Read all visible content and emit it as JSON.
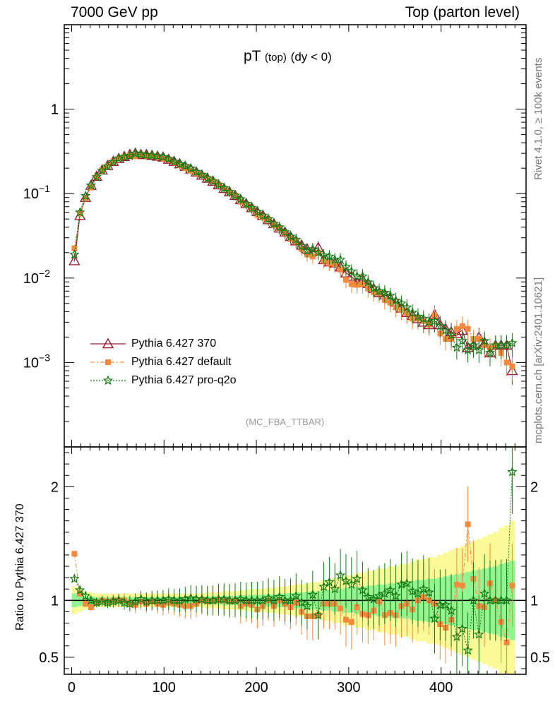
{
  "header": {
    "left": "7000 GeV pp",
    "right": "Top (parton level)"
  },
  "side_labels": {
    "rivet": "Rivet 4.1.0, ≥ 100k events",
    "mcplots": "mcplots.cern.ch [arXiv:2401.10621]"
  },
  "plot_title": {
    "main": "pT",
    "sub": "(top)",
    "cond": "(dy < 0)"
  },
  "analysis_tag": "(MC_FBA_TTBAR)",
  "ratio_ylabel": "Ratio to Pythia 6.427 370",
  "legend": [
    {
      "label": "Pythia 6.427 370",
      "color": "#9b1b30",
      "marker": "triangle"
    },
    {
      "label": "Pythia 6.427 default",
      "color": "#f58a3c",
      "marker": "square"
    },
    {
      "label": "Pythia 6.427 pro-q2o",
      "color": "#127a12",
      "marker": "star"
    }
  ],
  "colors": {
    "band_green": "#90f590",
    "band_yellow": "#fafa96"
  },
  "chart_data": [
    {
      "type": "line",
      "title": "pT (top) (dy < 0)",
      "xlabel": "",
      "ylabel": "",
      "xlim": [
        -8,
        492
      ],
      "ylim": [
        0.0001,
        10
      ],
      "yscale": "log",
      "yticks": [
        0.001,
        0.01,
        0.1,
        1
      ],
      "ytick_labels": [
        "10^-3",
        "10^-2",
        "10^-1",
        "1"
      ],
      "x": [
        3,
        9,
        15,
        21,
        27,
        33,
        39,
        45,
        51,
        57,
        63,
        69,
        75,
        81,
        87,
        93,
        99,
        105,
        111,
        117,
        123,
        129,
        135,
        141,
        147,
        153,
        159,
        165,
        171,
        177,
        183,
        189,
        195,
        201,
        207,
        213,
        219,
        225,
        231,
        237,
        243,
        249,
        255,
        261,
        267,
        273,
        279,
        285,
        291,
        297,
        303,
        309,
        315,
        321,
        327,
        333,
        339,
        345,
        351,
        357,
        363,
        369,
        375,
        381,
        387,
        393,
        399,
        405,
        411,
        417,
        423,
        429,
        435,
        441,
        447,
        453,
        459,
        465,
        471,
        477
      ],
      "series": [
        {
          "name": "Pythia 6.427 370",
          "values": [
            0.016,
            0.055,
            0.09,
            0.125,
            0.16,
            0.19,
            0.215,
            0.24,
            0.26,
            0.275,
            0.29,
            0.3,
            0.29,
            0.29,
            0.283,
            0.277,
            0.27,
            0.255,
            0.24,
            0.225,
            0.21,
            0.195,
            0.18,
            0.165,
            0.152,
            0.14,
            0.127,
            0.115,
            0.105,
            0.095,
            0.085,
            0.076,
            0.068,
            0.061,
            0.055,
            0.049,
            0.044,
            0.039,
            0.035,
            0.031,
            0.0275,
            0.0245,
            0.022,
            0.021,
            0.023,
            0.0165,
            0.0155,
            0.015,
            0.0135,
            0.0115,
            0.0105,
            0.0088,
            0.0096,
            0.0086,
            0.0075,
            0.0067,
            0.0063,
            0.0057,
            0.0052,
            0.0044,
            0.0039,
            0.0036,
            0.0033,
            0.003,
            0.0028,
            0.0037,
            0.0028,
            0.0025,
            0.0023,
            0.0022,
            0.0024,
            0.0015,
            0.0016,
            0.002,
            0.0017,
            0.0013,
            0.0016,
            0.0016,
            0.0016,
            0.0008
          ]
        },
        {
          "name": "Pythia 6.427 default",
          "values": [
            0.0225,
            0.058,
            0.087,
            0.118,
            0.157,
            0.19,
            0.213,
            0.24,
            0.26,
            0.275,
            0.283,
            0.277,
            0.29,
            0.28,
            0.28,
            0.269,
            0.26,
            0.25,
            0.232,
            0.215,
            0.2,
            0.186,
            0.175,
            0.166,
            0.15,
            0.141,
            0.128,
            0.115,
            0.104,
            0.095,
            0.08,
            0.074,
            0.066,
            0.056,
            0.052,
            0.049,
            0.042,
            0.039,
            0.034,
            0.029,
            0.027,
            0.022,
            0.019,
            0.018,
            0.02,
            0.016,
            0.015,
            0.0145,
            0.0126,
            0.0095,
            0.0085,
            0.0083,
            0.0085,
            0.0075,
            0.0068,
            0.0066,
            0.0055,
            0.0051,
            0.0045,
            0.0042,
            0.0038,
            0.0033,
            0.0033,
            0.0031,
            0.0028,
            0.0036,
            0.0022,
            0.0019,
            0.0019,
            0.0025,
            0.0027,
            0.0025,
            0.0019,
            0.0019,
            0.0016,
            0.0015,
            0.0016,
            0.0013,
            0.001,
            0.0009
          ]
        },
        {
          "name": "Pythia 6.427 pro-q2o",
          "values": [
            0.019,
            0.06,
            0.094,
            0.125,
            0.157,
            0.188,
            0.21,
            0.237,
            0.261,
            0.27,
            0.28,
            0.298,
            0.292,
            0.286,
            0.283,
            0.278,
            0.271,
            0.258,
            0.239,
            0.224,
            0.213,
            0.199,
            0.181,
            0.167,
            0.152,
            0.14,
            0.128,
            0.116,
            0.105,
            0.095,
            0.086,
            0.076,
            0.068,
            0.061,
            0.055,
            0.05,
            0.044,
            0.04,
            0.035,
            0.031,
            0.0285,
            0.024,
            0.021,
            0.022,
            0.02,
            0.0185,
            0.018,
            0.0165,
            0.0165,
            0.0135,
            0.012,
            0.0105,
            0.0105,
            0.0089,
            0.0076,
            0.007,
            0.0067,
            0.0062,
            0.0054,
            0.005,
            0.0045,
            0.0039,
            0.0035,
            0.0033,
            0.003,
            0.0031,
            0.0027,
            0.0024,
            0.0021,
            0.0015,
            0.0018,
            0.0014,
            0.0016,
            0.0014,
            0.0018,
            0.0013,
            0.0016,
            0.0016,
            0.0016,
            0.0017
          ]
        }
      ]
    },
    {
      "type": "line",
      "title": "",
      "xlabel": "",
      "ylabel": "Ratio to Pythia 6.427 370",
      "xlim": [
        -8,
        492
      ],
      "ylim": [
        0.35,
        2.35
      ],
      "xticks": [
        0,
        100,
        200,
        300,
        400
      ],
      "xtick_labels": [
        "0",
        "100",
        "200",
        "300",
        "400"
      ],
      "yticks": [
        0.5,
        1,
        2
      ],
      "ytick_labels": [
        "0.5",
        "1",
        "2"
      ],
      "x": [
        3,
        9,
        15,
        21,
        27,
        33,
        39,
        45,
        51,
        57,
        63,
        69,
        75,
        81,
        87,
        93,
        99,
        105,
        111,
        117,
        123,
        129,
        135,
        141,
        147,
        153,
        159,
        165,
        171,
        177,
        183,
        189,
        195,
        201,
        207,
        213,
        219,
        225,
        231,
        237,
        243,
        249,
        255,
        261,
        267,
        273,
        279,
        285,
        291,
        297,
        303,
        309,
        315,
        321,
        327,
        333,
        339,
        345,
        351,
        357,
        363,
        369,
        375,
        381,
        387,
        393,
        399,
        405,
        411,
        417,
        423,
        429,
        435,
        441,
        447,
        453,
        459,
        465,
        471,
        477
      ],
      "band_half_width_1sigma": [
        0.06,
        0.05,
        0.04,
        0.035,
        0.03,
        0.03,
        0.03,
        0.03,
        0.03,
        0.03,
        0.03,
        0.03,
        0.03,
        0.03,
        0.03,
        0.03,
        0.03,
        0.03,
        0.03,
        0.03,
        0.03,
        0.03,
        0.03,
        0.03,
        0.035,
        0.035,
        0.035,
        0.04,
        0.04,
        0.04,
        0.045,
        0.045,
        0.05,
        0.05,
        0.05,
        0.055,
        0.055,
        0.06,
        0.06,
        0.065,
        0.07,
        0.07,
        0.075,
        0.08,
        0.08,
        0.09,
        0.09,
        0.1,
        0.1,
        0.11,
        0.11,
        0.12,
        0.12,
        0.13,
        0.13,
        0.14,
        0.14,
        0.15,
        0.15,
        0.16,
        0.16,
        0.17,
        0.18,
        0.18,
        0.19,
        0.19,
        0.2,
        0.21,
        0.22,
        0.23,
        0.24,
        0.25,
        0.26,
        0.27,
        0.28,
        0.29,
        0.3,
        0.32,
        0.33,
        0.35
      ],
      "band_half_width_2sigma": [
        0.12,
        0.1,
        0.08,
        0.07,
        0.06,
        0.06,
        0.06,
        0.06,
        0.06,
        0.06,
        0.06,
        0.06,
        0.06,
        0.06,
        0.06,
        0.06,
        0.06,
        0.06,
        0.06,
        0.06,
        0.06,
        0.06,
        0.06,
        0.06,
        0.07,
        0.07,
        0.07,
        0.08,
        0.08,
        0.08,
        0.09,
        0.09,
        0.1,
        0.1,
        0.1,
        0.11,
        0.11,
        0.12,
        0.12,
        0.13,
        0.14,
        0.14,
        0.15,
        0.16,
        0.16,
        0.18,
        0.18,
        0.2,
        0.2,
        0.22,
        0.22,
        0.24,
        0.24,
        0.26,
        0.26,
        0.28,
        0.28,
        0.3,
        0.3,
        0.32,
        0.32,
        0.34,
        0.36,
        0.36,
        0.38,
        0.38,
        0.4,
        0.42,
        0.44,
        0.46,
        0.48,
        0.5,
        0.52,
        0.54,
        0.56,
        0.58,
        0.6,
        0.64,
        0.66,
        0.7
      ],
      "series": [
        {
          "name": "Pythia 6.427 default",
          "values": [
            1.41,
            1.06,
            0.97,
            0.94,
            0.98,
            1.0,
            0.99,
            1.0,
            1.0,
            1.0,
            0.98,
            0.96,
            0.99,
            0.97,
            0.99,
            0.97,
            0.96,
            0.98,
            0.97,
            0.96,
            0.95,
            0.95,
            0.97,
            1.0,
            0.99,
            1.0,
            1.0,
            1.0,
            0.99,
            1.0,
            0.95,
            0.97,
            0.96,
            0.92,
            0.95,
            1.0,
            0.95,
            1.0,
            0.97,
            0.94,
            0.98,
            0.9,
            0.86,
            0.86,
            0.87,
            0.97,
            0.97,
            0.97,
            0.93,
            0.83,
            0.81,
            0.94,
            0.88,
            0.87,
            0.91,
            0.99,
            0.87,
            0.89,
            0.87,
            0.95,
            0.97,
            0.92,
            1.0,
            1.03,
            1.0,
            0.97,
            0.79,
            0.76,
            0.83,
            1.14,
            1.13,
            1.67,
            1.19,
            0.95,
            0.94,
            1.15,
            1.0,
            0.81,
            0.63,
            1.13
          ]
        },
        {
          "name": "Pythia 6.427 pro-q2o",
          "values": [
            1.19,
            1.09,
            1.04,
            1.0,
            0.98,
            0.99,
            0.98,
            0.99,
            1.0,
            0.98,
            0.97,
            0.99,
            1.01,
            0.99,
            1.0,
            1.0,
            1.0,
            1.01,
            1.0,
            1.0,
            1.01,
            1.02,
            1.01,
            1.01,
            1.0,
            1.0,
            1.01,
            1.01,
            1.0,
            1.0,
            1.01,
            1.0,
            1.0,
            1.0,
            1.0,
            1.02,
            1.0,
            1.03,
            1.0,
            1.0,
            1.04,
            0.98,
            0.95,
            1.05,
            0.87,
            1.12,
            1.16,
            1.1,
            1.22,
            1.17,
            1.14,
            1.19,
            1.09,
            1.03,
            1.01,
            1.04,
            1.06,
            1.09,
            1.04,
            1.14,
            1.15,
            1.08,
            1.06,
            1.1,
            1.07,
            0.84,
            0.96,
            0.96,
            0.91,
            0.68,
            0.75,
            0.56,
            1.0,
            0.7,
            1.06,
            1.0,
            1.0,
            1.0,
            1.0,
            2.13
          ]
        }
      ]
    }
  ]
}
